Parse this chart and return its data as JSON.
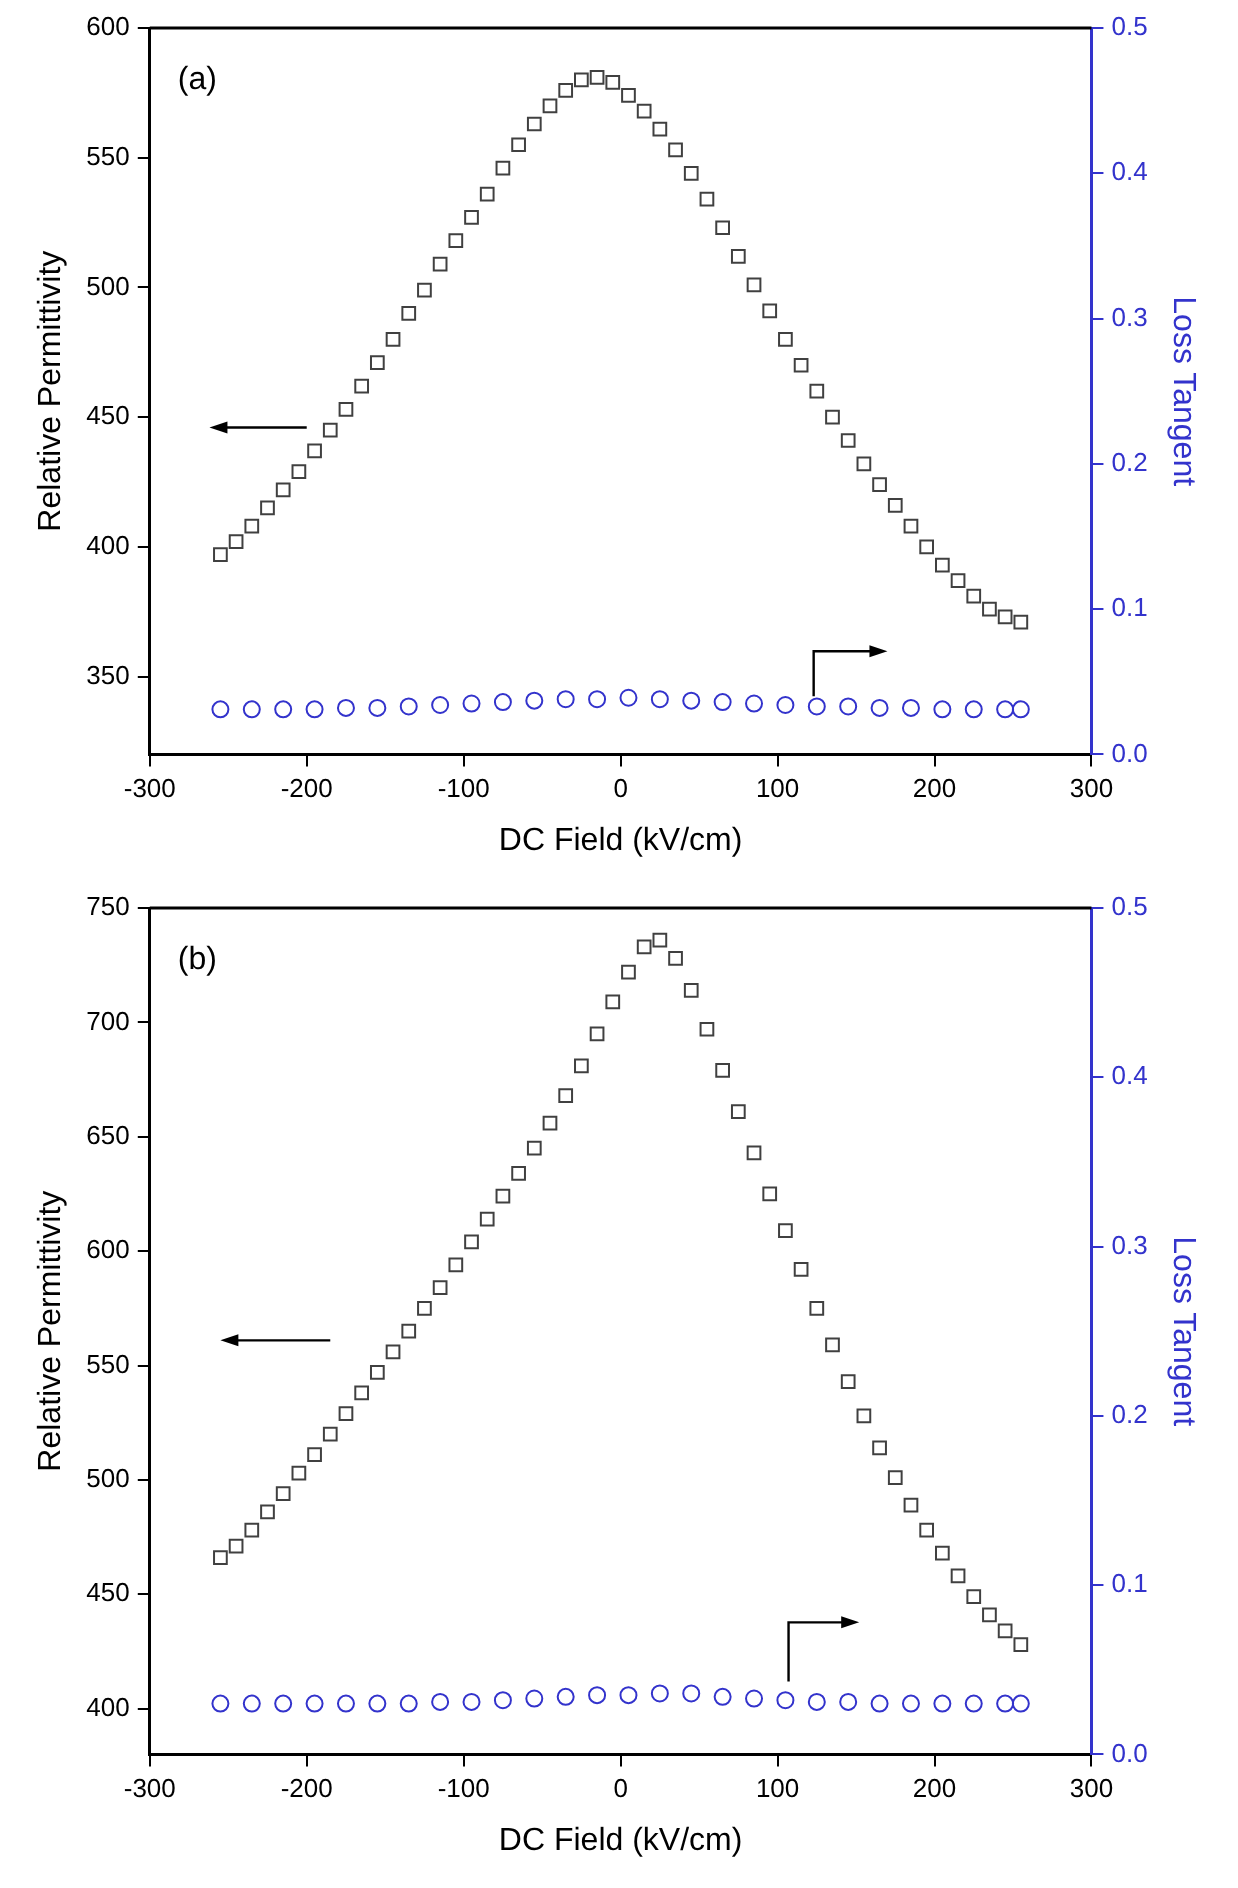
{
  "chart_data": [
    {
      "type": "scatter",
      "xlabel": "DC Field (kV/cm)",
      "ylabel": "Relative Permittivity",
      "y2label": "Loss Tangent",
      "annotations": [
        "(a)"
      ],
      "grid": false,
      "legend": false,
      "xlim": [
        -300,
        300
      ],
      "xticks": [
        -300,
        -200,
        -100,
        0,
        100,
        200,
        300
      ],
      "ylim": [
        320,
        600
      ],
      "yticks": [
        350,
        400,
        450,
        500,
        550,
        600
      ],
      "y2lim": [
        0,
        0.5
      ],
      "y2ticks": [
        {
          "value": 0,
          "label": "0.0"
        },
        0.1,
        0.2,
        0.3,
        0.4,
        0.5
      ],
      "series": [
        {
          "color": "#404040",
          "marker": "square",
          "x": [
            -255,
            -245,
            -235,
            -225,
            -215,
            -205,
            -195,
            -185,
            -175,
            -165,
            -155,
            -145,
            -135,
            -125,
            -115,
            -105,
            -95,
            -85,
            -75,
            -65,
            -55,
            -45,
            -35,
            -25,
            -15,
            -5,
            5,
            15,
            25,
            35,
            45,
            55,
            65,
            75,
            85,
            95,
            105,
            115,
            125,
            135,
            145,
            155,
            165,
            175,
            185,
            195,
            205,
            215,
            225,
            235,
            245,
            255
          ],
          "values": [
            397,
            402,
            408,
            415,
            422,
            429,
            437,
            445,
            453,
            462,
            471,
            480,
            490,
            499,
            509,
            518,
            527,
            536,
            546,
            555,
            563,
            570,
            576,
            580,
            581,
            579,
            574,
            568,
            561,
            553,
            544,
            534,
            523,
            512,
            501,
            491,
            480,
            470,
            460,
            450,
            441,
            432,
            424,
            416,
            408,
            400,
            393,
            387,
            381,
            376,
            373,
            371
          ]
        },
        {
          "color": "#3333cc",
          "marker": "circle",
          "axis": "y2",
          "x": [
            -255,
            -235,
            -215,
            -195,
            -175,
            -155,
            -135,
            -115,
            -95,
            -75,
            -55,
            -35,
            -15,
            5,
            25,
            45,
            65,
            85,
            105,
            125,
            145,
            165,
            185,
            205,
            225,
            245,
            255
          ],
          "values": [
            0.031,
            0.031,
            0.031,
            0.031,
            0.032,
            0.032,
            0.033,
            0.034,
            0.035,
            0.036,
            0.037,
            0.038,
            0.038,
            0.039,
            0.038,
            0.037,
            0.036,
            0.035,
            0.034,
            0.033,
            0.033,
            0.032,
            0.032,
            0.031,
            0.031,
            0.031,
            0.031
          ]
        }
      ]
    },
    {
      "type": "scatter",
      "xlabel": "DC Field (kV/cm)",
      "ylabel": "Relative Permittivity",
      "y2label": "Loss Tangent",
      "annotations": [
        "(b)"
      ],
      "grid": false,
      "legend": false,
      "xlim": [
        -300,
        300
      ],
      "xticks": [
        -300,
        -200,
        -100,
        0,
        100,
        200,
        300
      ],
      "ylim": [
        380,
        750
      ],
      "yticks": [
        400,
        450,
        500,
        550,
        600,
        650,
        700,
        750
      ],
      "y2lim": [
        0,
        0.5
      ],
      "y2ticks": [
        {
          "value": 0,
          "label": "0.0"
        },
        0.1,
        0.2,
        0.3,
        0.4,
        0.5
      ],
      "series": [
        {
          "color": "#404040",
          "marker": "square",
          "x": [
            -255,
            -245,
            -235,
            -225,
            -215,
            -205,
            -195,
            -185,
            -175,
            -165,
            -155,
            -145,
            -135,
            -125,
            -115,
            -105,
            -95,
            -85,
            -75,
            -65,
            -55,
            -45,
            -35,
            -25,
            -15,
            -5,
            5,
            15,
            25,
            35,
            45,
            55,
            65,
            75,
            85,
            95,
            105,
            115,
            125,
            135,
            145,
            155,
            165,
            175,
            185,
            195,
            205,
            215,
            225,
            235,
            245,
            255
          ],
          "values": [
            466,
            471,
            478,
            486,
            494,
            503,
            511,
            520,
            529,
            538,
            547,
            556,
            565,
            575,
            584,
            594,
            604,
            614,
            624,
            634,
            645,
            656,
            668,
            681,
            695,
            709,
            722,
            733,
            736,
            728,
            714,
            697,
            679,
            661,
            643,
            625,
            609,
            592,
            575,
            559,
            543,
            528,
            514,
            501,
            489,
            478,
            468,
            458,
            449,
            441,
            434,
            428
          ]
        },
        {
          "color": "#3333cc",
          "marker": "circle",
          "axis": "y2",
          "x": [
            -255,
            -235,
            -215,
            -195,
            -175,
            -155,
            -135,
            -115,
            -95,
            -75,
            -55,
            -35,
            -15,
            5,
            25,
            45,
            65,
            85,
            105,
            125,
            145,
            165,
            185,
            205,
            225,
            245,
            255
          ],
          "values": [
            0.03,
            0.03,
            0.03,
            0.03,
            0.03,
            0.03,
            0.03,
            0.031,
            0.031,
            0.032,
            0.033,
            0.034,
            0.035,
            0.035,
            0.036,
            0.036,
            0.034,
            0.033,
            0.032,
            0.031,
            0.031,
            0.03,
            0.03,
            0.03,
            0.03,
            0.03,
            0.03
          ]
        }
      ]
    }
  ]
}
